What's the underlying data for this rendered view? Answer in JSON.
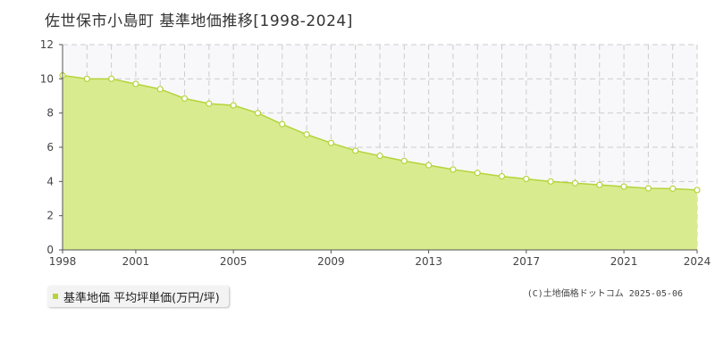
{
  "chart_data": {
    "type": "area",
    "title": "佐世保市小島町 基準地価推移[1998-2024]",
    "x": [
      1998,
      1999,
      2000,
      2001,
      2002,
      2003,
      2004,
      2005,
      2006,
      2007,
      2008,
      2009,
      2010,
      2011,
      2012,
      2013,
      2014,
      2015,
      2016,
      2017,
      2018,
      2019,
      2020,
      2021,
      2022,
      2023,
      2024
    ],
    "series": [
      {
        "name": "基準地価 平均坪単価(万円/坪)",
        "values": [
          10.2,
          10.0,
          10.0,
          9.7,
          9.4,
          8.85,
          8.55,
          8.45,
          8.0,
          7.35,
          6.75,
          6.25,
          5.8,
          5.5,
          5.2,
          4.95,
          4.7,
          4.5,
          4.3,
          4.15,
          4.0,
          3.9,
          3.8,
          3.7,
          3.6,
          3.58,
          3.5
        ]
      }
    ],
    "x_tick_labels": [
      "1998",
      "2001",
      "2005",
      "2009",
      "2013",
      "2017",
      "2021",
      "2024"
    ],
    "y_tick_labels": [
      "0",
      "2",
      "4",
      "6",
      "8",
      "10",
      "12"
    ],
    "xlim": [
      1998,
      2024
    ],
    "ylim": [
      0,
      12
    ],
    "grid": true,
    "legend_position": "bottom-left",
    "colors": {
      "fill": "#d8ec8f",
      "line": "#b4d43a",
      "marker_fill": "#ffffff",
      "grid": "#cccccc",
      "plot_bg": "#f8f8fa"
    }
  },
  "copyright": "(C)土地価格ドットコム 2025-05-06"
}
